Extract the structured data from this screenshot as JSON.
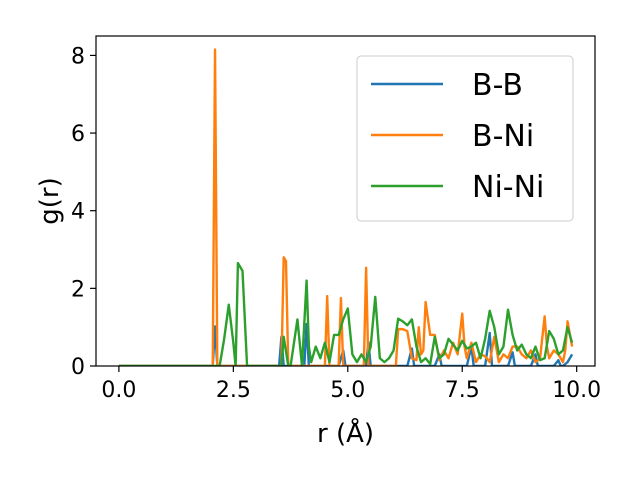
{
  "chart_data": {
    "type": "line",
    "title": "",
    "xlabel": "r (Å)",
    "ylabel": "g(r)",
    "xlim": [
      -0.5,
      10.4
    ],
    "ylim": [
      0,
      8.5
    ],
    "x_ticks": [
      0.0,
      2.5,
      5.0,
      7.5,
      10.0
    ],
    "x_tick_labels": [
      "0.0",
      "2.5",
      "5.0",
      "7.5",
      "10.0"
    ],
    "y_ticks": [
      0,
      2,
      4,
      6,
      8
    ],
    "y_tick_labels": [
      "0",
      "2",
      "4",
      "6",
      "8"
    ],
    "grid": false,
    "legend_position": "top-right",
    "series": [
      {
        "name": "B-B",
        "color": "#1f77b4",
        "x": [
          0.0,
          2.0,
          2.05,
          2.1,
          2.15,
          2.2,
          3.5,
          3.55,
          3.6,
          3.65,
          4.05,
          4.1,
          4.15,
          4.8,
          4.9,
          4.95,
          5.0,
          5.4,
          5.45,
          5.5,
          5.55,
          5.6,
          6.3,
          6.4,
          6.45,
          6.5,
          6.9,
          7.0,
          7.05,
          7.1,
          7.6,
          7.7,
          7.75,
          7.8,
          8.0,
          8.1,
          8.15,
          8.2,
          8.5,
          8.6,
          8.65,
          8.7,
          9.0,
          9.1,
          9.15,
          9.2,
          9.5,
          9.6,
          9.65,
          9.7,
          9.8,
          9.9
        ],
        "y": [
          0,
          0,
          0,
          1.02,
          0,
          0,
          0,
          0.75,
          0,
          0,
          0,
          1.08,
          0,
          0,
          0.4,
          0,
          0,
          0,
          0.62,
          0,
          0,
          0,
          0,
          0.45,
          0,
          0,
          0,
          0.3,
          0,
          0,
          0,
          0.5,
          0,
          0,
          0,
          0.85,
          0,
          0,
          0,
          0.35,
          0,
          0,
          0,
          0.3,
          0,
          0,
          0,
          0.15,
          0,
          0,
          0.1,
          0.3
        ]
      },
      {
        "name": "B-Ni",
        "color": "#ff7f0e",
        "x": [
          0.0,
          2.0,
          2.05,
          2.1,
          2.15,
          2.2,
          3.55,
          3.6,
          3.65,
          3.7,
          3.75,
          4.5,
          4.55,
          4.6,
          4.65,
          4.8,
          4.85,
          4.9,
          5.35,
          5.4,
          5.45,
          5.5,
          6.05,
          6.1,
          6.2,
          6.3,
          6.4,
          6.5,
          6.55,
          6.6,
          6.65,
          6.7,
          6.8,
          6.9,
          7.0,
          7.1,
          7.2,
          7.3,
          7.4,
          7.5,
          7.55,
          7.6,
          7.7,
          7.8,
          7.9,
          8.0,
          8.1,
          8.2,
          8.3,
          8.4,
          8.5,
          8.6,
          8.7,
          8.8,
          8.9,
          9.0,
          9.1,
          9.2,
          9.3,
          9.35,
          9.4,
          9.5,
          9.6,
          9.7,
          9.75,
          9.8,
          9.9
        ],
        "y": [
          0,
          0,
          0,
          8.15,
          0,
          0,
          0,
          2.8,
          2.7,
          0,
          0,
          0,
          1.8,
          0,
          0,
          0,
          1.75,
          0,
          0,
          2.53,
          0,
          0,
          0,
          0.95,
          0.95,
          0.9,
          0.2,
          0.15,
          1.0,
          0.3,
          0.4,
          1.65,
          0.8,
          0.8,
          0.15,
          0.4,
          0.2,
          0.6,
          0.3,
          1.35,
          0.5,
          0.2,
          0.6,
          0.1,
          0.3,
          0.25,
          0.1,
          0.75,
          0.1,
          0.3,
          0.2,
          0.5,
          0.5,
          0.3,
          0.2,
          0.4,
          0.1,
          0.2,
          1.28,
          0.5,
          0.2,
          0.4,
          0.3,
          0.1,
          0.4,
          1.15,
          0.5
        ]
      },
      {
        "name": "Ni-Ni",
        "color": "#2ca02c",
        "x": [
          0.0,
          2.1,
          2.2,
          2.3,
          2.4,
          2.5,
          2.55,
          2.6,
          2.7,
          2.8,
          2.85,
          3.55,
          3.6,
          3.7,
          3.75,
          3.9,
          4.0,
          4.1,
          4.15,
          4.2,
          4.3,
          4.4,
          4.5,
          4.6,
          4.7,
          4.8,
          4.9,
          5.0,
          5.1,
          5.2,
          5.3,
          5.4,
          5.5,
          5.6,
          5.7,
          5.8,
          5.9,
          6.0,
          6.1,
          6.2,
          6.3,
          6.4,
          6.5,
          6.6,
          6.7,
          6.8,
          6.9,
          7.0,
          7.1,
          7.2,
          7.3,
          7.4,
          7.5,
          7.6,
          7.7,
          7.8,
          7.9,
          8.0,
          8.1,
          8.2,
          8.3,
          8.4,
          8.5,
          8.6,
          8.7,
          8.8,
          8.9,
          9.0,
          9.1,
          9.2,
          9.3,
          9.4,
          9.5,
          9.6,
          9.7,
          9.8,
          9.9
        ],
        "y": [
          0,
          0,
          0,
          0.7,
          1.58,
          0.6,
          0,
          2.65,
          2.45,
          0,
          0,
          0,
          0.75,
          0,
          0,
          1.2,
          0,
          2.2,
          0.5,
          0.1,
          0.5,
          0.2,
          0.6,
          0.1,
          0.8,
          0.8,
          1.2,
          1.48,
          0.3,
          0.1,
          0.3,
          0.1,
          0.5,
          1.78,
          0.2,
          0.1,
          0.2,
          0.4,
          1.22,
          1.15,
          1.05,
          1.2,
          0.5,
          0.1,
          0.2,
          0.05,
          0.75,
          0.2,
          0.3,
          0.7,
          0.55,
          0.4,
          0.65,
          0.45,
          0.5,
          0.6,
          0.2,
          0.7,
          1.42,
          1.0,
          0.3,
          0.5,
          1.45,
          0.8,
          0.4,
          0.55,
          0.3,
          0.2,
          0.5,
          0.15,
          0.2,
          0.9,
          0.7,
          0.3,
          0.4,
          1.0,
          0.6
        ]
      }
    ]
  }
}
